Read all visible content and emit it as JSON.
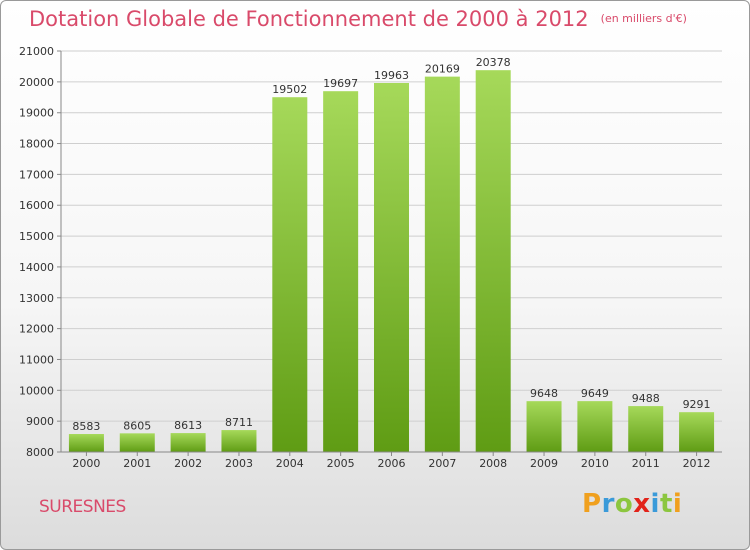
{
  "header": {
    "title": "Dotation Globale de Fonctionnement de 2000 à 2012",
    "unit": "(en milliers d'€)"
  },
  "footer": {
    "commune": "SURESNES",
    "logo": [
      "P",
      "r",
      "o",
      "x",
      "i",
      "t",
      "i"
    ]
  },
  "colors": {
    "title": "#d94a6a",
    "bar_top": "#a6d95a",
    "bar_bottom": "#5f9c14",
    "grid": "#cfcfcf"
  },
  "chart_data": {
    "type": "bar",
    "title": "Dotation Globale de Fonctionnement de 2000 à 2012",
    "subtitle": "(en milliers d'€)",
    "xlabel": "",
    "ylabel": "",
    "categories": [
      "2000",
      "2001",
      "2002",
      "2003",
      "2004",
      "2005",
      "2006",
      "2007",
      "2008",
      "2009",
      "2010",
      "2011",
      "2012"
    ],
    "values": [
      8583,
      8605,
      8613,
      8711,
      19502,
      19697,
      19963,
      20169,
      20378,
      9648,
      9649,
      9488,
      9291
    ],
    "ylim": [
      8000,
      21000
    ],
    "yticks": [
      8000,
      9000,
      10000,
      11000,
      12000,
      13000,
      14000,
      15000,
      16000,
      17000,
      18000,
      19000,
      20000,
      21000
    ],
    "grid": true,
    "data_labels": true
  }
}
